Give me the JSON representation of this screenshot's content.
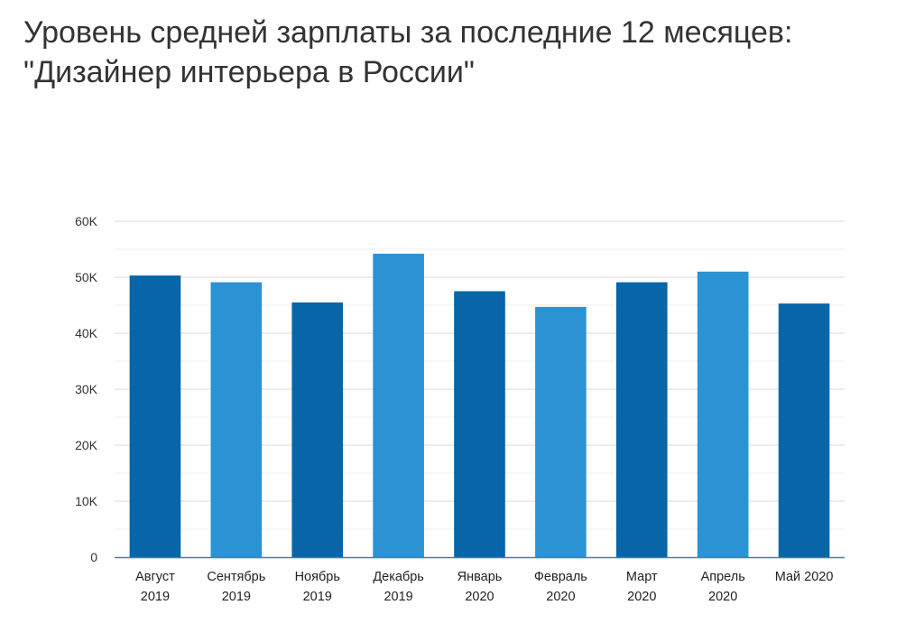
{
  "title_lines": [
    "Уровень средней зарплаты за последние 12 месяцев:",
    "\"Дизайнер интерьера в России\""
  ],
  "colors": {
    "dark": "#0765a8",
    "light": "#2b93d3",
    "grid_major": "#d9d9d9",
    "grid_minor": "#ececec",
    "axis": "#3a7fc0"
  },
  "chart_data": {
    "type": "bar",
    "title": "Уровень средней зарплаты за последние 12 месяцев: \"Дизайнер интерьера в России\"",
    "xlabel": "",
    "ylabel": "",
    "categories": [
      [
        "Август",
        "2019"
      ],
      [
        "Сентябрь",
        "2019"
      ],
      [
        "Ноябрь",
        "2019"
      ],
      [
        "Декабрь",
        "2019"
      ],
      [
        "Январь",
        "2020"
      ],
      [
        "Февраль",
        "2020"
      ],
      [
        "Март",
        "2020"
      ],
      [
        "Апрель",
        "2020"
      ],
      [
        "Май 2020"
      ]
    ],
    "values": [
      50300,
      49100,
      45500,
      54200,
      47500,
      44700,
      49100,
      51000,
      45300
    ],
    "bar_colors": [
      "dark",
      "light",
      "dark",
      "light",
      "dark",
      "light",
      "dark",
      "light",
      "dark"
    ],
    "ylim": [
      0,
      60000
    ],
    "yticks": [
      0,
      10000,
      20000,
      30000,
      40000,
      50000,
      60000
    ],
    "ytick_labels": [
      "0",
      "10K",
      "20K",
      "30K",
      "40K",
      "50K",
      "60K"
    ],
    "grid": true,
    "legend": "none"
  }
}
